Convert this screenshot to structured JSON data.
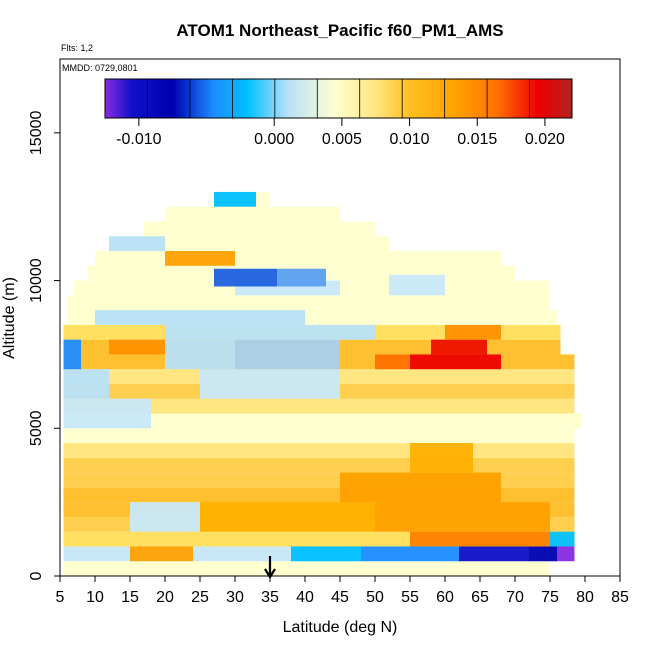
{
  "chart_data": {
    "type": "heatmap",
    "title": "ATOM1 Northeast_Pacific f60_PM1_AMS",
    "flights_label": "Flts: 1,2",
    "dates_label": "MMDD: 0729,0801",
    "xlabel": "Latitude (deg N)",
    "ylabel": "Altitude (m)",
    "xlim": [
      5,
      85
    ],
    "ylim": [
      0,
      17500
    ],
    "x_ticks": [
      5,
      10,
      15,
      20,
      25,
      30,
      35,
      40,
      45,
      50,
      55,
      60,
      65,
      70,
      75,
      80,
      85
    ],
    "y_ticks": [
      0,
      5000,
      10000,
      15000
    ],
    "colorbar": {
      "range": [
        -0.0125,
        0.022
      ],
      "ticks": [
        -0.01,
        0.0,
        0.005,
        0.01,
        0.015,
        0.02
      ],
      "tick_labels": [
        "-0.010",
        "0.000",
        "0.005",
        "0.010",
        "0.015",
        "0.020"
      ],
      "stops": [
        {
          "v": -0.0125,
          "c": "#8a2be2"
        },
        {
          "v": -0.0105,
          "c": "#1010c8"
        },
        {
          "v": -0.0075,
          "c": "#0000b0"
        },
        {
          "v": -0.0045,
          "c": "#1e8cff"
        },
        {
          "v": -0.002,
          "c": "#00c0ff"
        },
        {
          "v": 0.001,
          "c": "#b8e0f8"
        },
        {
          "v": 0.0045,
          "c": "#ffffd0"
        },
        {
          "v": 0.0075,
          "c": "#ffe680"
        },
        {
          "v": 0.01,
          "c": "#ffc020"
        },
        {
          "v": 0.0135,
          "c": "#ffa000"
        },
        {
          "v": 0.0165,
          "c": "#ff7000"
        },
        {
          "v": 0.0195,
          "c": "#ee0000"
        },
        {
          "v": 0.022,
          "c": "#b22222"
        }
      ]
    },
    "lat_bins": [
      5,
      79
    ],
    "altitude_profile": [
      {
        "alt": 250,
        "c": "#ffffd0",
        "range": [
          5.5,
          75
        ]
      },
      {
        "alt": 750,
        "c": "#c8e8f8",
        "range": [
          5.5,
          78.5
        ]
      },
      {
        "alt": 1250,
        "c": "#ffe060",
        "range": [
          5.5,
          78.5
        ]
      },
      {
        "alt": 1750,
        "c": "#ffd050",
        "range": [
          5.5,
          78.5
        ]
      },
      {
        "alt": 2250,
        "c": "#ffc030",
        "range": [
          5.5,
          78.5
        ]
      },
      {
        "alt": 2750,
        "c": "#ffc030",
        "range": [
          5.5,
          78.5
        ]
      },
      {
        "alt": 3250,
        "c": "#ffd050",
        "range": [
          5.5,
          78.5
        ]
      },
      {
        "alt": 3750,
        "c": "#ffd050",
        "range": [
          5.5,
          78.5
        ]
      },
      {
        "alt": 4250,
        "c": "#ffe680",
        "range": [
          5.5,
          78.5
        ]
      },
      {
        "alt": 4750,
        "c": "#ffffd0",
        "range": [
          5.5,
          78.5
        ]
      },
      {
        "alt": 5250,
        "c": "#ffffd0",
        "range": [
          5.5,
          79.5
        ]
      },
      {
        "alt": 5750,
        "c": "#ffe680",
        "range": [
          5.5,
          78.5
        ]
      },
      {
        "alt": 6250,
        "c": "#ffd050",
        "range": [
          5.5,
          78.5
        ]
      },
      {
        "alt": 6750,
        "c": "#ffe680",
        "range": [
          5.5,
          78.5
        ]
      },
      {
        "alt": 7250,
        "c": "#ffc030",
        "range": [
          5.5,
          78.5
        ]
      },
      {
        "alt": 7750,
        "c": "#ffc030",
        "range": [
          5.5,
          76.5
        ]
      },
      {
        "alt": 8250,
        "c": "#ffe060",
        "range": [
          5.5,
          76.5
        ]
      },
      {
        "alt": 8750,
        "c": "#ffffd0",
        "range": [
          6,
          76
        ]
      },
      {
        "alt": 9250,
        "c": "#ffffd0",
        "range": [
          6,
          75
        ]
      },
      {
        "alt": 9750,
        "c": "#ffffd0",
        "range": [
          7,
          75
        ]
      },
      {
        "alt": 10250,
        "c": "#ffffd0",
        "range": [
          9,
          70
        ]
      },
      {
        "alt": 10750,
        "c": "#ffffd0",
        "range": [
          10,
          68
        ]
      },
      {
        "alt": 11250,
        "c": "#ffffd0",
        "range": [
          12,
          52
        ]
      },
      {
        "alt": 11750,
        "c": "#ffffd0",
        "range": [
          17,
          50
        ]
      },
      {
        "alt": 12250,
        "c": "#ffffd0",
        "range": [
          20,
          45
        ]
      },
      {
        "alt": 12750,
        "c": "#ffffd0",
        "range": [
          27,
          35
        ]
      }
    ],
    "features": [
      {
        "alt": [
          500,
          1000
        ],
        "lat": [
          38,
          48
        ],
        "c": "#00c0ff"
      },
      {
        "alt": [
          500,
          1000
        ],
        "lat": [
          48,
          62
        ],
        "c": "#1e8cff"
      },
      {
        "alt": [
          500,
          1000
        ],
        "lat": [
          62,
          72
        ],
        "c": "#1010c8"
      },
      {
        "alt": [
          500,
          1000
        ],
        "lat": [
          72,
          76
        ],
        "c": "#0000b0"
      },
      {
        "alt": [
          500,
          1000
        ],
        "lat": [
          76,
          78.5
        ],
        "c": "#8a2be2"
      },
      {
        "alt": [
          500,
          1000
        ],
        "lat": [
          15,
          24
        ],
        "c": "#ffa000"
      },
      {
        "alt": [
          1000,
          1500
        ],
        "lat": [
          75,
          78.5
        ],
        "c": "#00c0ff"
      },
      {
        "alt": [
          1000,
          1500
        ],
        "lat": [
          55,
          75
        ],
        "c": "#ff8000"
      },
      {
        "alt": [
          1500,
          2500
        ],
        "lat": [
          50,
          75
        ],
        "c": "#ffa000"
      },
      {
        "alt": [
          1500,
          2500
        ],
        "lat": [
          25,
          50
        ],
        "c": "#ffb000"
      },
      {
        "alt": [
          1500,
          2500
        ],
        "lat": [
          15,
          25
        ],
        "c": "#c8e8f8"
      },
      {
        "alt": [
          2500,
          3500
        ],
        "lat": [
          45,
          68
        ],
        "c": "#ffa000"
      },
      {
        "alt": [
          3500,
          4500
        ],
        "lat": [
          55,
          64
        ],
        "c": "#ffb000"
      },
      {
        "alt": [
          5000,
          6000
        ],
        "lat": [
          5.5,
          18
        ],
        "c": "#c8e8f8"
      },
      {
        "alt": [
          6000,
          7000
        ],
        "lat": [
          5.5,
          12
        ],
        "c": "#b8e0f8"
      },
      {
        "alt": [
          6000,
          7000
        ],
        "lat": [
          25,
          45
        ],
        "c": "#c8e8f8"
      },
      {
        "alt": [
          7000,
          7500
        ],
        "lat": [
          55,
          68
        ],
        "c": "#ee0000"
      },
      {
        "alt": [
          7000,
          7500
        ],
        "lat": [
          50,
          55
        ],
        "c": "#ff7000"
      },
      {
        "alt": [
          7500,
          8000
        ],
        "lat": [
          58,
          66
        ],
        "c": "#ee1000"
      },
      {
        "alt": [
          7500,
          8000
        ],
        "lat": [
          12,
          20
        ],
        "c": "#ff9000"
      },
      {
        "alt": [
          7000,
          8000
        ],
        "lat": [
          20,
          30
        ],
        "c": "#b8e0f8"
      },
      {
        "alt": [
          7000,
          8000
        ],
        "lat": [
          30,
          45
        ],
        "c": "#a8d0f0"
      },
      {
        "alt": [
          7000,
          8000
        ],
        "lat": [
          5.5,
          8
        ],
        "c": "#1e8cff"
      },
      {
        "alt": [
          8000,
          8500
        ],
        "lat": [
          60,
          68
        ],
        "c": "#ff9000"
      },
      {
        "alt": [
          8000,
          8500
        ],
        "lat": [
          20,
          50
        ],
        "c": "#b8e0f8"
      },
      {
        "alt": [
          8500,
          9000
        ],
        "lat": [
          10,
          40
        ],
        "c": "#b8e0f8"
      },
      {
        "alt": [
          9500,
          10000
        ],
        "lat": [
          30,
          45
        ],
        "c": "#c8e8f8"
      },
      {
        "alt": [
          9800,
          10400
        ],
        "lat": [
          27,
          36
        ],
        "c": "#1e60e0"
      },
      {
        "alt": [
          9800,
          10400
        ],
        "lat": [
          36,
          43
        ],
        "c": "#5aa0f0"
      },
      {
        "alt": [
          9500,
          10200
        ],
        "lat": [
          52,
          60
        ],
        "c": "#c8e8f8"
      },
      {
        "alt": [
          10500,
          11000
        ],
        "lat": [
          20,
          30
        ],
        "c": "#ffa000"
      },
      {
        "alt": [
          11000,
          11500
        ],
        "lat": [
          12,
          20
        ],
        "c": "#b8e0f8"
      },
      {
        "alt": [
          12500,
          13000
        ],
        "lat": [
          27,
          33
        ],
        "c": "#00c0ff"
      }
    ],
    "marker_lat": 35
  }
}
